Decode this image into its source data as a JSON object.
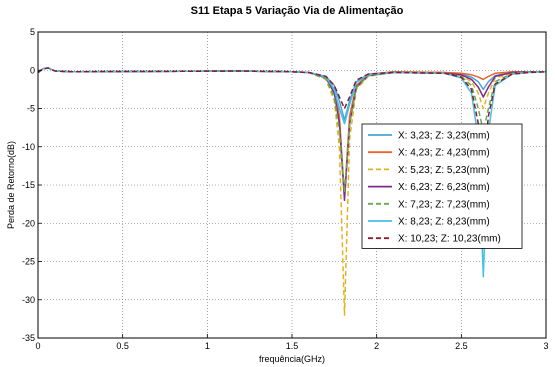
{
  "chart_data": {
    "type": "line",
    "title": "S11 Etapa 5 Variação Via de Alimentação",
    "xlabel": "frequência(GHz)",
    "ylabel": "Perda de Retorno(dB)",
    "xlim": [
      0,
      3
    ],
    "ylim": [
      -35,
      5
    ],
    "xticks": [
      0,
      0.5,
      1,
      1.5,
      2,
      2.5,
      3
    ],
    "xtick_labels": [
      "0",
      "0.5",
      "1",
      "1.5",
      "2",
      "2.5",
      "3"
    ],
    "yticks": [
      5,
      0,
      -5,
      -10,
      -15,
      -20,
      -25,
      -30,
      -35
    ],
    "ytick_labels": [
      "5",
      "0",
      "-5",
      "-10",
      "-15",
      "-20",
      "-25",
      "-30",
      "-35"
    ],
    "grid": true,
    "legend_position": "right",
    "series": [
      {
        "name": "X: 3,23; Z: 3,23(mm)",
        "color": "#4fa3d9",
        "dash": "solid",
        "x": [
          0,
          0.03,
          0.06,
          0.1,
          0.2,
          1.2,
          1.5,
          1.6,
          1.7,
          1.75,
          1.78,
          1.81,
          1.84,
          1.88,
          1.95,
          2.1,
          2.4,
          2.5,
          2.56,
          2.6,
          2.63,
          2.66,
          2.7,
          2.8,
          2.9,
          3.0
        ],
        "y": [
          -0.3,
          0.2,
          0.3,
          -0.1,
          -0.2,
          -0.1,
          -0.2,
          -0.3,
          -0.8,
          -2,
          -4,
          -6.5,
          -4,
          -1.5,
          -0.5,
          -0.2,
          -0.3,
          -0.5,
          -0.9,
          -1.5,
          -2.5,
          -1.5,
          -0.7,
          -0.3,
          -0.2,
          -0.2
        ]
      },
      {
        "name": "X: 4,23; Z: 4,23(mm)",
        "color": "#e8642a",
        "dash": "solid",
        "x": [
          0,
          0.03,
          0.06,
          0.1,
          0.2,
          1.2,
          1.5,
          1.6,
          1.7,
          1.75,
          1.78,
          1.81,
          1.84,
          1.88,
          1.95,
          2.1,
          2.4,
          2.5,
          2.56,
          2.6,
          2.63,
          2.66,
          2.7,
          2.8,
          2.9,
          3.0
        ],
        "y": [
          -0.3,
          0.2,
          0.3,
          -0.1,
          -0.2,
          -0.1,
          -0.2,
          -0.3,
          -0.9,
          -2.5,
          -6,
          -16.5,
          -6,
          -2,
          -0.6,
          -0.2,
          -0.3,
          -0.4,
          -0.6,
          -0.9,
          -1.2,
          -0.8,
          -0.4,
          -0.2,
          -0.2,
          -0.2
        ]
      },
      {
        "name": "X: 5,23; Z: 5,23(mm)",
        "color": "#e0b41f",
        "dash": "dashed",
        "x": [
          0,
          0.03,
          0.06,
          0.1,
          0.2,
          1.2,
          1.5,
          1.6,
          1.7,
          1.75,
          1.78,
          1.81,
          1.84,
          1.88,
          1.95,
          2.1,
          2.4,
          2.5,
          2.56,
          2.6,
          2.63,
          2.66,
          2.7,
          2.8,
          2.9,
          3.0
        ],
        "y": [
          -0.3,
          0.2,
          0.3,
          -0.1,
          -0.2,
          -0.1,
          -0.2,
          -0.3,
          -1.2,
          -4,
          -10,
          -32,
          -9,
          -2.5,
          -0.8,
          -0.3,
          -0.4,
          -0.7,
          -1.5,
          -3,
          -5,
          -3,
          -1,
          -0.4,
          -0.2,
          -0.2
        ]
      },
      {
        "name": "X: 6,23; Z: 6,23(mm)",
        "color": "#7b2d8e",
        "dash": "solid",
        "x": [
          0,
          0.03,
          0.06,
          0.1,
          0.2,
          1.2,
          1.5,
          1.6,
          1.7,
          1.75,
          1.78,
          1.81,
          1.84,
          1.88,
          1.95,
          2.1,
          2.4,
          2.5,
          2.56,
          2.6,
          2.63,
          2.66,
          2.7,
          2.8,
          2.9,
          3.0
        ],
        "y": [
          -0.3,
          0.2,
          0.3,
          -0.1,
          -0.2,
          -0.1,
          -0.2,
          -0.3,
          -1,
          -3,
          -7,
          -17,
          -7,
          -2.2,
          -0.7,
          -0.3,
          -0.4,
          -0.6,
          -1.2,
          -2.2,
          -3.5,
          -2.2,
          -0.8,
          -0.3,
          -0.2,
          -0.2
        ]
      },
      {
        "name": "X: 7,23; Z: 7,23(mm)",
        "color": "#6aa84f",
        "dash": "dashed",
        "x": [
          0,
          0.03,
          0.06,
          0.1,
          0.2,
          1.2,
          1.5,
          1.6,
          1.7,
          1.75,
          1.78,
          1.81,
          1.84,
          1.88,
          1.95,
          2.1,
          2.4,
          2.5,
          2.56,
          2.6,
          2.63,
          2.66,
          2.7,
          2.8,
          2.9,
          3.0
        ],
        "y": [
          -0.3,
          0.2,
          0.3,
          -0.1,
          -0.2,
          -0.1,
          -0.2,
          -0.3,
          -1.1,
          -3.5,
          -8,
          -16,
          -7,
          -2.3,
          -0.7,
          -0.3,
          -0.4,
          -0.8,
          -2,
          -5,
          -8,
          -5,
          -1.5,
          -0.4,
          -0.2,
          -0.2
        ]
      },
      {
        "name": "X: 8,23; Z: 8,23(mm)",
        "color": "#45c0e8",
        "dash": "solid",
        "x": [
          0,
          0.03,
          0.06,
          0.1,
          0.2,
          1.2,
          1.5,
          1.6,
          1.7,
          1.75,
          1.78,
          1.81,
          1.84,
          1.88,
          1.95,
          2.1,
          2.4,
          2.5,
          2.56,
          2.6,
          2.63,
          2.66,
          2.7,
          2.8,
          2.9,
          3.0
        ],
        "y": [
          -0.3,
          0.2,
          0.3,
          -0.1,
          -0.2,
          -0.1,
          -0.2,
          -0.3,
          -0.9,
          -2.5,
          -5,
          -7,
          -4.5,
          -1.6,
          -0.6,
          -0.3,
          -0.4,
          -1,
          -3,
          -9,
          -27,
          -8,
          -2,
          -0.5,
          -0.3,
          -0.2
        ]
      },
      {
        "name": "X: 10,23; Z: 10,23(mm)",
        "color": "#8b1a2e",
        "dash": "dashed",
        "x": [
          0,
          0.03,
          0.06,
          0.1,
          0.2,
          1.2,
          1.5,
          1.6,
          1.7,
          1.75,
          1.78,
          1.81,
          1.84,
          1.88,
          1.95,
          2.1,
          2.4,
          2.5,
          2.56,
          2.6,
          2.63,
          2.66,
          2.7,
          2.8,
          2.9,
          3.0
        ],
        "y": [
          -0.3,
          0.2,
          0.3,
          -0.1,
          -0.2,
          -0.1,
          -0.2,
          -0.3,
          -0.8,
          -2,
          -3.5,
          -5,
          -3.5,
          -1.3,
          -0.5,
          -0.3,
          -0.4,
          -0.9,
          -2.5,
          -7,
          -13,
          -6,
          -1.8,
          -0.5,
          -0.3,
          -0.2
        ]
      }
    ]
  }
}
